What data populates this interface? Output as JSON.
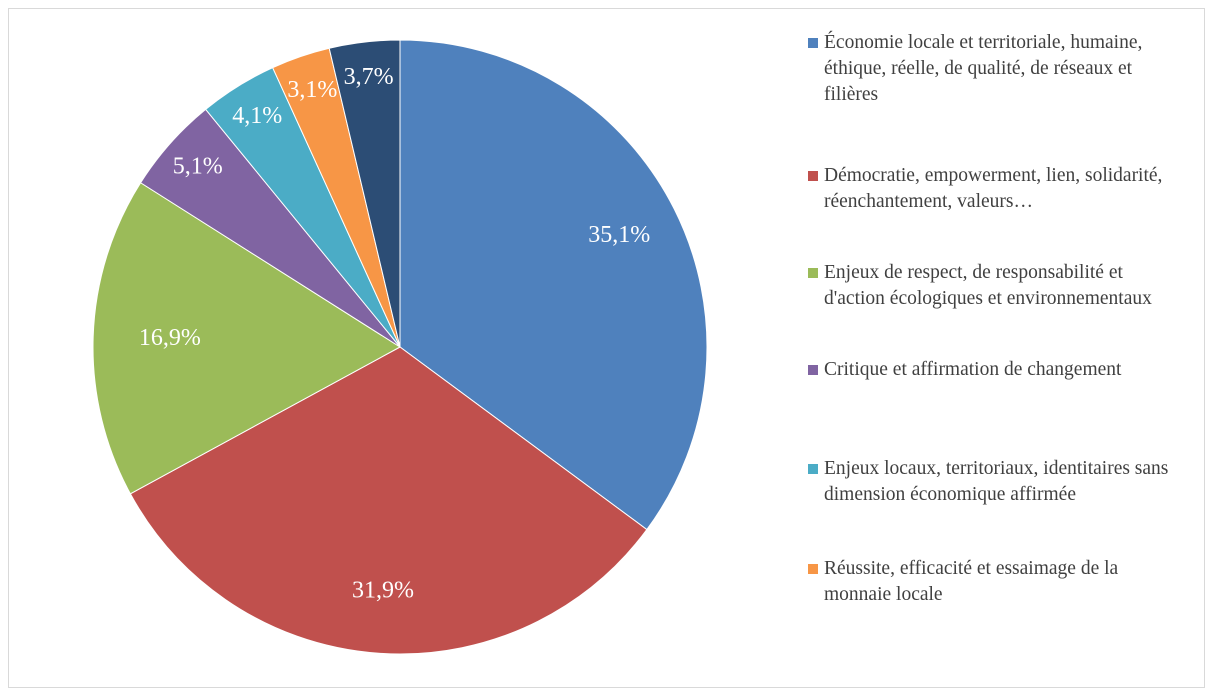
{
  "chart_data": {
    "type": "pie",
    "categories": [
      "Économie locale et territoriale, humaine, éthique, réelle, de qualité, de réseaux et filières",
      "Démocratie, empowerment, lien, solidarité, réenchantement, valeurs…",
      "Enjeux de respect, de responsabilité et d'action écologiques et environnementaux",
      "Critique et affirmation de changement",
      "Enjeux locaux, territoriaux, identitaires sans dimension économique affirmée",
      "Réussite, efficacité et essaimage de la monnaie locale",
      null
    ],
    "values": [
      35.1,
      31.9,
      16.9,
      5.1,
      4.1,
      3.1,
      3.7
    ],
    "value_labels": [
      "35,1%",
      "31,9%",
      "16,9%",
      "5,1%",
      "4,1%",
      "3,1%",
      "3,7%"
    ],
    "colors": [
      "#4f81bd",
      "#c0504d",
      "#9bbb59",
      "#8064a2",
      "#4bacc6",
      "#f79646",
      "#2c4d75"
    ],
    "legend": "right"
  }
}
